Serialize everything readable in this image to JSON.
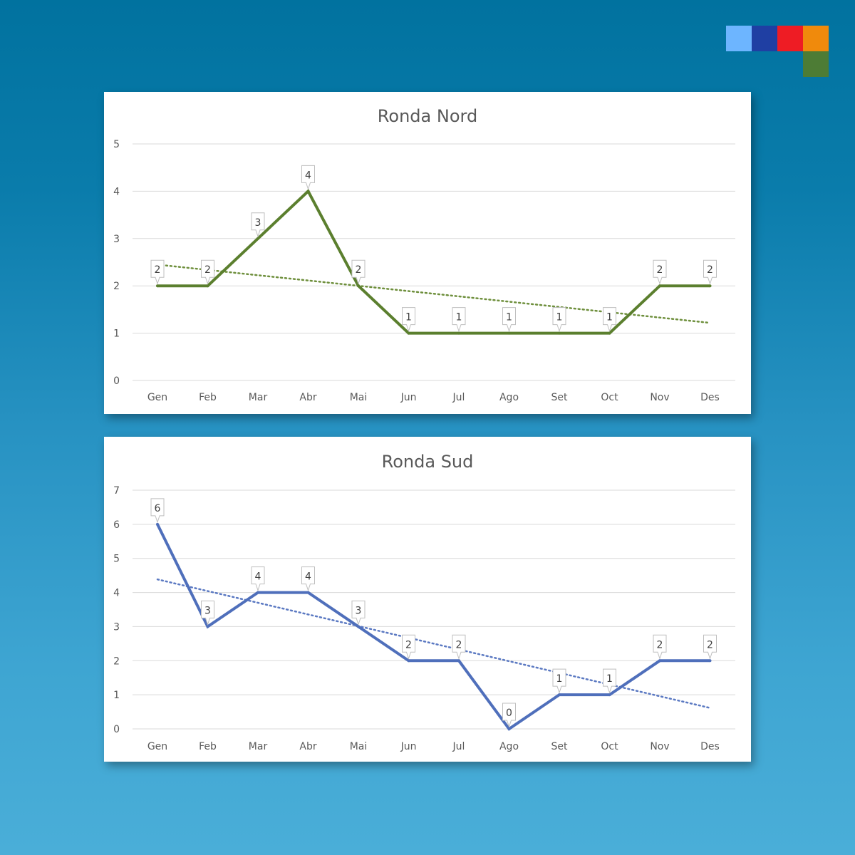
{
  "logo": {
    "colors": [
      "#6db5ff",
      "#1f3fa3",
      "#ee1c24",
      "#f08a0c",
      "#4d7c35"
    ],
    "icon": "brand-squares-logo"
  },
  "chart_data": [
    {
      "type": "line",
      "title": "Ronda Nord",
      "categories": [
        "Gen",
        "Feb",
        "Mar",
        "Abr",
        "Mai",
        "Jun",
        "Jul",
        "Ago",
        "Set",
        "Oct",
        "Nov",
        "Des"
      ],
      "series": [
        {
          "values": [
            2,
            2,
            3,
            4,
            2,
            1,
            1,
            1,
            1,
            1,
            2,
            2
          ],
          "color": "#5b7f2e",
          "data_labels": true
        }
      ],
      "trendline": {
        "type": "linear",
        "style": "dotted",
        "color": "#6e8f3c"
      },
      "ylim": [
        0,
        5
      ],
      "yticks": [
        0,
        1,
        2,
        3,
        4,
        5
      ],
      "grid": true,
      "legend": "none"
    },
    {
      "type": "line",
      "title": "Ronda Sud",
      "categories": [
        "Gen",
        "Feb",
        "Mar",
        "Abr",
        "Mai",
        "Jun",
        "Jul",
        "Ago",
        "Set",
        "Oct",
        "Nov",
        "Des"
      ],
      "series": [
        {
          "values": [
            6,
            3,
            4,
            4,
            3,
            2,
            2,
            0,
            1,
            1,
            2,
            2
          ],
          "color": "#4f6fbb",
          "data_labels": true
        }
      ],
      "trendline": {
        "type": "linear",
        "style": "dotted",
        "color": "#5b79c2"
      },
      "ylim": [
        0,
        7
      ],
      "yticks": [
        0,
        1,
        2,
        3,
        4,
        5,
        6,
        7
      ],
      "grid": true,
      "legend": "none"
    }
  ]
}
